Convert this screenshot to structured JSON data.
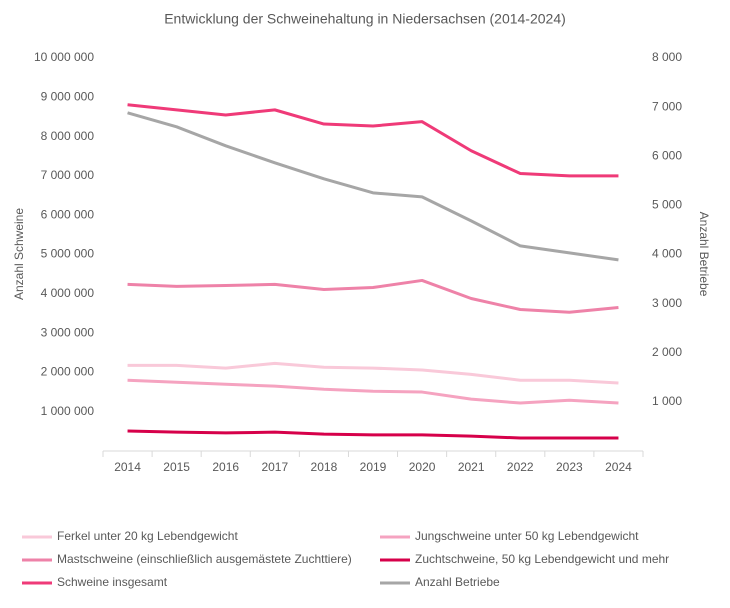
{
  "chart_data": {
    "type": "line",
    "title": "Entwicklung der Schweinehaltung in Niedersachsen (2014-2024)",
    "y_label": "Anzahl Schweine",
    "y2_label": "Anzahl Betriebe",
    "categories": [
      "2014",
      "2015",
      "2016",
      "2017",
      "2018",
      "2019",
      "2020",
      "2021",
      "2022",
      "2023",
      "2024"
    ],
    "ylim": [
      0,
      10000000
    ],
    "yticks": [
      {
        "value": 1000000,
        "label": "1 000 000"
      },
      {
        "value": 2000000,
        "label": "2 000 000"
      },
      {
        "value": 3000000,
        "label": "3 000 000"
      },
      {
        "value": 4000000,
        "label": "4 000 000"
      },
      {
        "value": 5000000,
        "label": "5 000 000"
      },
      {
        "value": 6000000,
        "label": "6 000 000"
      },
      {
        "value": 7000000,
        "label": "7 000 000"
      },
      {
        "value": 8000000,
        "label": "8 000 000"
      },
      {
        "value": 9000000,
        "label": "9 000 000"
      },
      {
        "value": 10000000,
        "label": "10 000 000"
      }
    ],
    "y2lim": [
      0,
      8000
    ],
    "y2ticks": [
      {
        "value": 1000,
        "label": "1 000"
      },
      {
        "value": 2000,
        "label": "2 000"
      },
      {
        "value": 3000,
        "label": "3 000"
      },
      {
        "value": 4000,
        "label": "4 000"
      },
      {
        "value": 5000,
        "label": "5 000"
      },
      {
        "value": 6000,
        "label": "6 000"
      },
      {
        "value": 7000,
        "label": "7 000"
      },
      {
        "value": 8000,
        "label": "8 000"
      }
    ],
    "series": [
      {
        "name": "Ferkel unter 20 kg Lebendgewicht",
        "color": "#f9c9d9",
        "values": [
          2180000,
          2180000,
          2110000,
          2230000,
          2130000,
          2110000,
          2060000,
          1950000,
          1800000,
          1800000,
          1730000
        ]
      },
      {
        "name": "Jungschweine unter 50 kg Lebendgewicht",
        "color": "#f5a3c0",
        "values": [
          1800000,
          1750000,
          1700000,
          1650000,
          1570000,
          1520000,
          1500000,
          1320000,
          1220000,
          1290000,
          1220000
        ]
      },
      {
        "name": "Mastschweine (einschließlich ausgemästete Zuchttiere)",
        "color": "#ee82a8",
        "values": [
          4240000,
          4190000,
          4210000,
          4240000,
          4110000,
          4160000,
          4340000,
          3880000,
          3600000,
          3530000,
          3650000
        ]
      },
      {
        "name": "Zuchtschweine, 50 kg Lebendgewicht und mehr",
        "color": "#d6004a",
        "values": [
          510000,
          480000,
          460000,
          480000,
          430000,
          410000,
          410000,
          380000,
          330000,
          330000,
          330000
        ]
      },
      {
        "name": "Schweine insgesamt",
        "color": "#ef3a78",
        "values": [
          8810000,
          8680000,
          8550000,
          8680000,
          8320000,
          8270000,
          8380000,
          7640000,
          7060000,
          7000000,
          7000000
        ]
      },
      {
        "name": "Anzahl Betriebe",
        "color": "#a6a6a6",
        "axis": "y2",
        "values": [
          6884,
          6599,
          6212,
          5866,
          5540,
          5255,
          5173,
          4684,
          4175,
          4033,
          3890
        ]
      }
    ]
  }
}
